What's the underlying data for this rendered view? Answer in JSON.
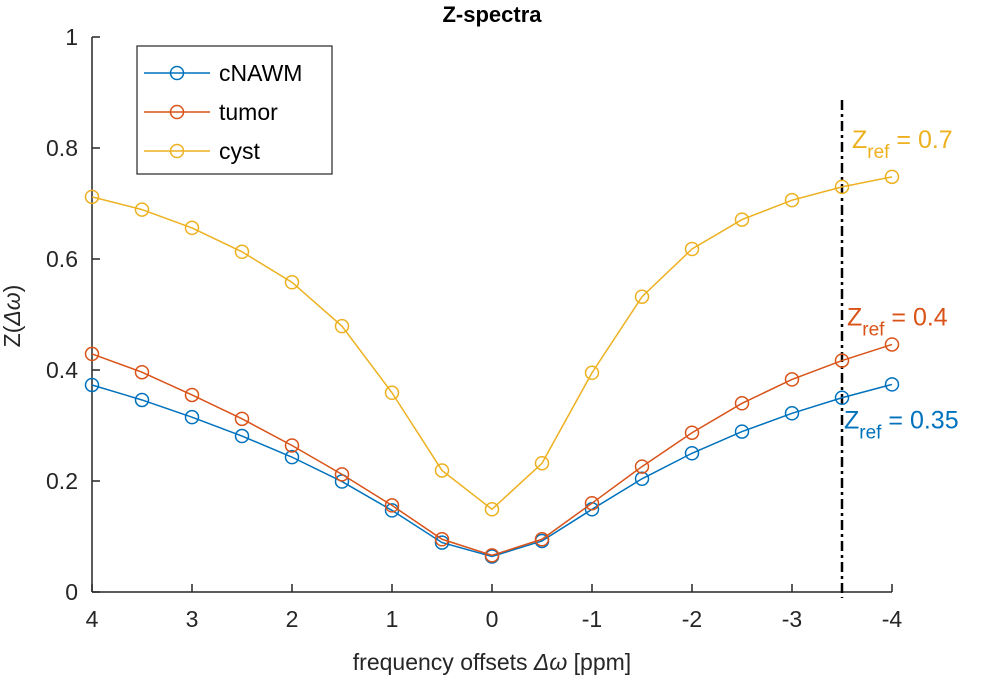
{
  "chart_data": {
    "type": "line",
    "title": "Z-spectra",
    "xlabel_text": "frequency offsets ",
    "xlabel_symbol": "Δω",
    "xlabel_unit": " [ppm]",
    "ylabel_text": "Z(",
    "ylabel_symbol": "Δω",
    "ylabel_close": ")",
    "x_reversed": true,
    "xlim": [
      4,
      -4
    ],
    "ylim": [
      0,
      1
    ],
    "xticks": [
      4,
      3,
      2,
      1,
      0,
      -1,
      -2,
      -3,
      -4
    ],
    "yticks": [
      0,
      0.2,
      0.4,
      0.6,
      0.8,
      1
    ],
    "x": [
      4,
      3.5,
      3,
      2.5,
      2,
      1.5,
      1,
      0.5,
      0,
      -0.5,
      -1,
      -1.5,
      -2,
      -2.5,
      -3,
      -3.5,
      -4
    ],
    "legend_position": "top-left",
    "series": [
      {
        "name": "cNAWM",
        "color": "#0072BD",
        "values": [
          0.373,
          0.346,
          0.315,
          0.281,
          0.243,
          0.199,
          0.147,
          0.089,
          0.064,
          0.092,
          0.149,
          0.204,
          0.25,
          0.289,
          0.322,
          0.35,
          0.374
        ]
      },
      {
        "name": "tumor",
        "color": "#D95319",
        "values": [
          0.429,
          0.396,
          0.355,
          0.312,
          0.264,
          0.212,
          0.156,
          0.095,
          0.066,
          0.095,
          0.16,
          0.226,
          0.287,
          0.34,
          0.383,
          0.417,
          0.446
        ]
      },
      {
        "name": "cyst",
        "color": "#EDB120",
        "values": [
          0.712,
          0.689,
          0.656,
          0.613,
          0.558,
          0.479,
          0.359,
          0.219,
          0.149,
          0.232,
          0.395,
          0.532,
          0.618,
          0.671,
          0.706,
          0.73,
          0.748
        ]
      }
    ],
    "ref_line": {
      "x": -3.5,
      "color": "#000000"
    },
    "annotations": [
      {
        "prefix": "Z",
        "sub": "ref",
        "suffix": " = 0.7",
        "color": "#EDB120",
        "x": -3.6,
        "y": 0.8
      },
      {
        "prefix": "Z",
        "sub": "ref",
        "suffix": " = 0.4",
        "color": "#D95319",
        "x": -3.55,
        "y": 0.48
      },
      {
        "prefix": "Z",
        "sub": "ref",
        "suffix": " = 0.35",
        "color": "#0072BD",
        "x": -3.52,
        "y": 0.295
      }
    ]
  }
}
